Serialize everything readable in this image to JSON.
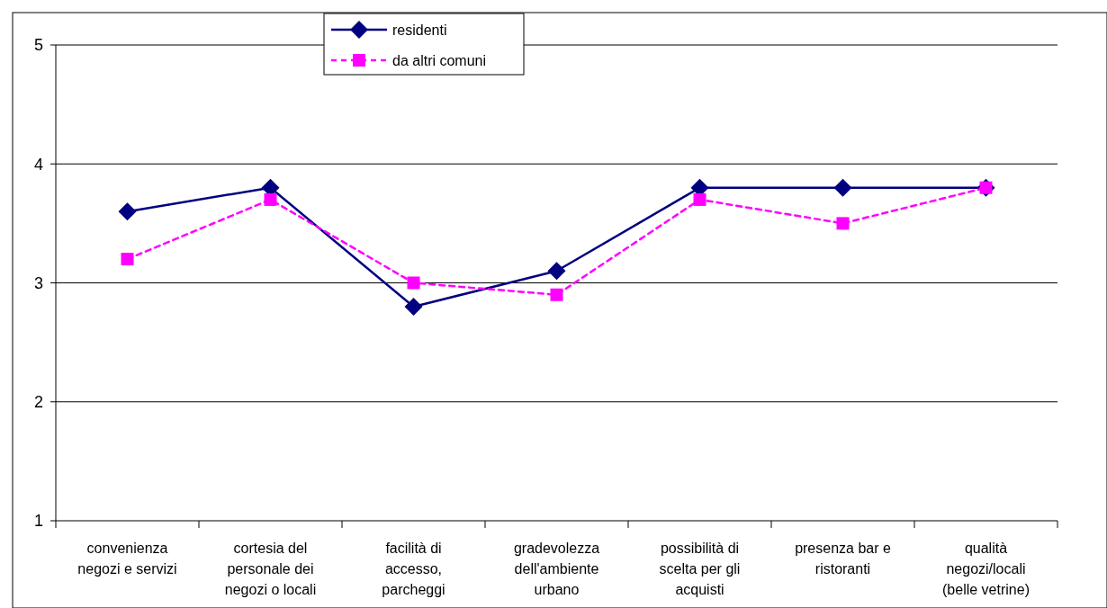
{
  "chart_data": {
    "type": "line",
    "categories": [
      "convenienza negozi e servizi",
      "cortesia del personale dei negozi o locali",
      "facilità di accesso, parcheggi",
      "gradevolezza dell'ambiente urbano",
      "possibilità di scelta per gli acquisti",
      "presenza bar e ristoranti",
      "qualità negozi/locali (belle vetrine)"
    ],
    "series": [
      {
        "name": "residenti",
        "color": "#000080",
        "marker": "diamond",
        "line_style": "solid",
        "values": [
          3.6,
          3.8,
          2.8,
          3.1,
          3.8,
          3.8,
          3.8
        ]
      },
      {
        "name": "da altri comuni",
        "color": "#ff00ff",
        "marker": "square",
        "line_style": "dashed",
        "values": [
          3.2,
          3.7,
          3.0,
          2.9,
          3.7,
          3.5,
          3.8
        ]
      }
    ],
    "ylim": [
      1,
      5
    ],
    "yticks": [
      1,
      2,
      3,
      4,
      5
    ],
    "grid": "y",
    "legend": "top"
  }
}
